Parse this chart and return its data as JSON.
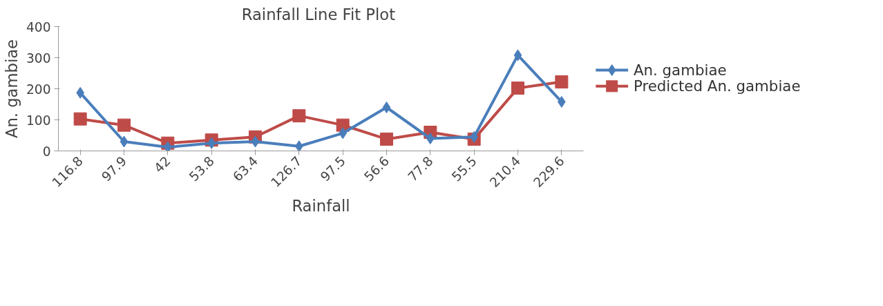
{
  "chart_data": {
    "type": "line",
    "title": "Rainfall Line Fit  Plot",
    "xlabel": "Rainfall",
    "ylabel": "An. gambiae",
    "categories": [
      "116.8",
      "97.9",
      "42",
      "53.8",
      "63.4",
      "126.7",
      "97.5",
      "56.6",
      "77.8",
      "55.5",
      "210.4",
      "229.6"
    ],
    "series": [
      {
        "name": "An. gambiae",
        "color": "#4a7ebb",
        "marker": "diamond",
        "values": [
          187,
          30,
          12,
          25,
          30,
          15,
          57,
          140,
          40,
          45,
          308,
          158
        ]
      },
      {
        "name": "Predicted An. gambiae",
        "color": "#be4b48",
        "marker": "square",
        "values": [
          103,
          83,
          25,
          35,
          45,
          113,
          83,
          38,
          60,
          38,
          202,
          222
        ]
      }
    ],
    "ylim": [
      0,
      400
    ],
    "yticks": [
      0,
      100,
      200,
      300,
      400
    ],
    "grid": false,
    "legend": "right"
  }
}
